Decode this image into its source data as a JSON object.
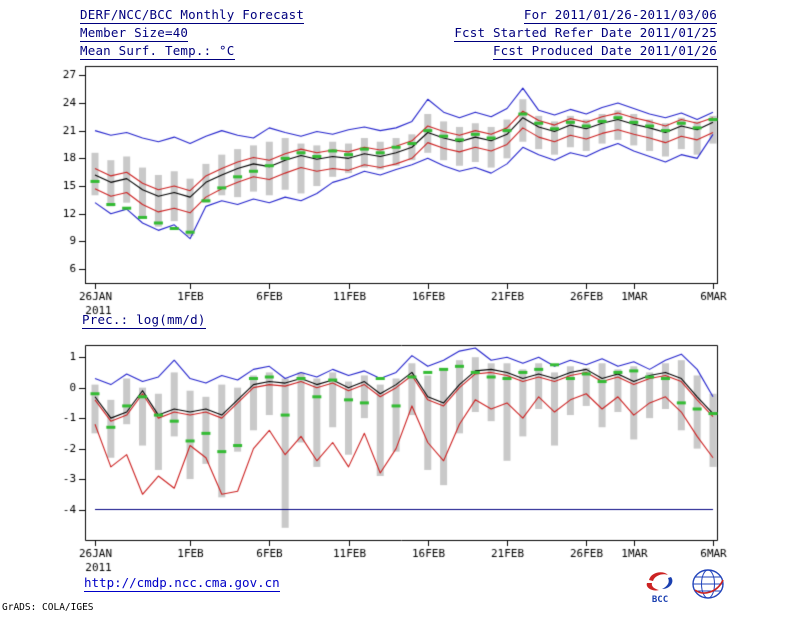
{
  "header": {
    "title_left": "DERF/NCC/BCC Monthly Forecast",
    "title_right": "For 2011/01/26-2011/03/06",
    "member_size": "Member Size=40",
    "refer_date": "Fcst Started Refer Date 2011/01/25",
    "var_label": "Mean Surf. Temp.: °C",
    "produced_date": "Fcst Produced Date 2011/01/26"
  },
  "footer": {
    "url": "http://cmdp.ncc.cma.gov.cn",
    "credit": "GrADS: COLA/IGES",
    "logos": [
      {
        "name": "bcc-logo",
        "label": "BCC"
      },
      {
        "name": "globe-logo",
        "label": ""
      }
    ]
  },
  "colors": {
    "envelope": "#2222cc",
    "quartile": "#cc2222",
    "mean": "#000000",
    "observation": "#33bb33",
    "spread_bar": "#c9c9c9",
    "floor_line": "#000080",
    "header_text": "#00007e",
    "link": "#0000c8"
  },
  "chart_data": [
    {
      "type": "line",
      "title": "Mean Surf. Temp.: °C",
      "n_days": 40,
      "x_tick_labels": [
        "26JAN",
        "1FEB",
        "6FEB",
        "11FEB",
        "16FEB",
        "21FEB",
        "26FEB",
        "1MAR",
        "6MAR"
      ],
      "x_tick_days": [
        0,
        6,
        11,
        16,
        21,
        26,
        31,
        34,
        39
      ],
      "x_sub_label": "2011",
      "ylim": [
        6,
        27
      ],
      "yticks": [
        6,
        9,
        12,
        15,
        18,
        21,
        24,
        27
      ],
      "series": [
        {
          "name": "ensemble-max",
          "color": "#2222cc",
          "values": [
            21.0,
            20.5,
            20.8,
            20.2,
            19.8,
            20.3,
            19.6,
            20.4,
            21.0,
            20.5,
            20.2,
            21.3,
            20.8,
            20.4,
            20.9,
            20.6,
            21.1,
            21.4,
            21.0,
            21.3,
            22.0,
            24.4,
            23.0,
            22.4,
            23.0,
            22.5,
            23.4,
            25.6,
            23.2,
            22.7,
            23.3,
            22.8,
            23.5,
            24.0,
            23.4,
            22.8,
            22.4,
            22.9,
            22.2,
            23.0
          ]
        },
        {
          "name": "ensemble-min",
          "color": "#2222cc",
          "values": [
            13.2,
            12.0,
            12.5,
            11.0,
            10.2,
            10.8,
            9.3,
            12.8,
            13.4,
            13.0,
            13.6,
            13.2,
            13.8,
            13.4,
            14.2,
            15.4,
            15.9,
            16.6,
            16.2,
            16.8,
            17.3,
            18.0,
            17.2,
            16.6,
            17.0,
            16.4,
            17.4,
            19.2,
            18.4,
            17.8,
            18.6,
            18.2,
            19.0,
            19.6,
            18.8,
            18.2,
            17.6,
            18.4,
            18.0,
            20.6
          ]
        },
        {
          "name": "upper-quartile",
          "color": "#cc2222",
          "values": [
            16.9,
            16.1,
            16.5,
            15.3,
            14.6,
            15.0,
            14.5,
            16.1,
            16.9,
            17.6,
            18.1,
            17.8,
            18.5,
            19.0,
            18.6,
            18.9,
            18.7,
            19.2,
            18.9,
            19.3,
            19.9,
            21.5,
            20.9,
            20.5,
            21.0,
            20.6,
            21.3,
            23.1,
            22.1,
            21.6,
            22.3,
            21.9,
            22.5,
            22.9,
            22.4,
            22.0,
            21.5,
            22.2,
            21.8,
            22.4
          ]
        },
        {
          "name": "lower-quartile",
          "color": "#cc2222",
          "values": [
            14.7,
            13.9,
            14.3,
            13.0,
            12.2,
            12.6,
            12.1,
            13.8,
            14.7,
            15.4,
            16.0,
            15.7,
            16.4,
            17.0,
            16.6,
            16.9,
            16.7,
            17.3,
            17.0,
            17.4,
            18.0,
            19.7,
            19.1,
            18.7,
            19.2,
            18.8,
            19.5,
            21.3,
            20.3,
            19.8,
            20.5,
            20.1,
            20.7,
            21.1,
            20.6,
            20.2,
            19.7,
            20.4,
            20.0,
            20.8
          ]
        },
        {
          "name": "ensemble-mean",
          "color": "#000000",
          "values": [
            16.2,
            15.4,
            15.8,
            14.6,
            13.9,
            14.3,
            13.8,
            15.4,
            16.2,
            16.9,
            17.4,
            17.1,
            17.8,
            18.3,
            17.9,
            18.2,
            18.0,
            18.5,
            18.2,
            18.6,
            19.2,
            20.8,
            20.2,
            19.8,
            20.3,
            19.9,
            20.6,
            22.4,
            21.4,
            20.9,
            21.6,
            21.2,
            21.8,
            22.2,
            21.7,
            21.3,
            20.8,
            21.5,
            21.1,
            21.9
          ]
        }
      ],
      "bars": {
        "name": "member-spread",
        "color": "#c9c9c9",
        "low": [
          14.0,
          12.8,
          13.2,
          11.6,
          10.6,
          11.2,
          9.6,
          13.2,
          14.0,
          13.8,
          14.4,
          14.0,
          14.6,
          14.2,
          15.0,
          16.0,
          16.4,
          17.0,
          16.8,
          17.2,
          17.8,
          18.6,
          17.8,
          17.2,
          17.6,
          17.0,
          18.0,
          19.8,
          19.0,
          18.4,
          19.2,
          18.8,
          19.6,
          20.0,
          19.4,
          18.8,
          18.2,
          19.0,
          18.4,
          19.6
        ],
        "high": [
          18.6,
          17.8,
          18.2,
          17.0,
          16.2,
          16.6,
          15.8,
          17.4,
          18.4,
          19.0,
          19.4,
          19.8,
          20.2,
          19.6,
          19.4,
          19.8,
          19.6,
          20.2,
          19.8,
          20.2,
          20.6,
          22.8,
          22.0,
          21.4,
          21.8,
          21.4,
          22.2,
          24.4,
          22.6,
          22.0,
          22.6,
          22.2,
          22.8,
          23.2,
          22.8,
          22.2,
          21.8,
          22.4,
          22.0,
          22.6
        ]
      },
      "markers": {
        "name": "observation-dash",
        "color": "#33bb33",
        "values": [
          15.5,
          13.0,
          12.6,
          11.6,
          11.0,
          10.4,
          10.0,
          13.4,
          14.8,
          16.0,
          16.6,
          17.2,
          18.0,
          18.6,
          18.2,
          18.8,
          18.4,
          19.0,
          18.6,
          19.2,
          19.6,
          21.0,
          20.4,
          20.0,
          20.6,
          20.2,
          21.0,
          22.8,
          21.8,
          21.2,
          21.9,
          21.5,
          22.0,
          22.4,
          21.9,
          21.5,
          21.0,
          21.8,
          21.3,
          22.2
        ]
      }
    },
    {
      "type": "line",
      "title": "Prec.: log(mm/d)",
      "n_days": 40,
      "x_tick_labels": [
        "26JAN",
        "1FEB",
        "6FEB",
        "11FEB",
        "16FEB",
        "21FEB",
        "26FEB",
        "1MAR",
        "6MAR"
      ],
      "x_tick_days": [
        0,
        6,
        11,
        16,
        21,
        26,
        31,
        34,
        39
      ],
      "x_sub_label": "2011",
      "ylim": [
        -4,
        1
      ],
      "yticks": [
        -4,
        -3,
        -2,
        -1,
        0,
        1
      ],
      "series": [
        {
          "name": "lower-bound",
          "color": "#000080",
          "values": [
            -4.0,
            -4.0,
            -4.0,
            -4.0,
            -4.0,
            -4.0,
            -4.0,
            -4.0,
            -4.0,
            -4.0,
            -4.0,
            -4.0,
            -4.0,
            -4.0,
            -4.0,
            -4.0,
            -4.0,
            -4.0,
            -4.0,
            -4.0,
            -4.0,
            -4.0,
            -4.0,
            -4.0,
            -4.0,
            -4.0,
            -4.0,
            -4.0,
            -4.0,
            -4.0,
            -4.0,
            -4.0,
            -4.0,
            -4.0,
            -4.0,
            -4.0,
            -4.0,
            -4.0,
            -4.0,
            -4.0
          ]
        },
        {
          "name": "ensemble-max",
          "color": "#2222cc",
          "values": [
            0.3,
            0.1,
            0.45,
            0.2,
            0.35,
            0.9,
            0.3,
            0.15,
            0.4,
            0.25,
            0.6,
            0.7,
            0.3,
            0.5,
            0.35,
            0.6,
            0.4,
            0.55,
            0.3,
            0.5,
            1.05,
            0.7,
            0.9,
            1.2,
            1.3,
            0.9,
            1.0,
            0.8,
            1.0,
            0.7,
            0.9,
            0.75,
            0.95,
            0.7,
            0.85,
            0.6,
            0.9,
            1.1,
            0.6,
            -0.3
          ]
        },
        {
          "name": "lower-quartile",
          "color": "#cc2222",
          "values": [
            -1.2,
            -2.6,
            -2.2,
            -3.5,
            -2.9,
            -3.3,
            -1.9,
            -2.3,
            -3.5,
            -3.4,
            -2.0,
            -1.4,
            -2.2,
            -1.6,
            -2.4,
            -1.8,
            -2.6,
            -1.5,
            -2.8,
            -2.0,
            -0.6,
            -1.8,
            -2.4,
            -1.2,
            -0.4,
            -0.7,
            -0.5,
            -1.0,
            -0.3,
            -0.8,
            -0.4,
            -0.2,
            -0.7,
            -0.3,
            -0.9,
            -0.5,
            -0.3,
            -0.8,
            -1.6,
            -2.3
          ]
        },
        {
          "name": "upper-quartile",
          "color": "#cc2222",
          "values": [
            -0.4,
            -1.1,
            -0.9,
            -0.2,
            -1.0,
            -0.8,
            -0.9,
            -0.8,
            -1.0,
            -0.5,
            0.0,
            0.1,
            0.05,
            0.2,
            0.0,
            0.15,
            -0.1,
            0.1,
            -0.3,
            0.0,
            0.4,
            -0.4,
            -0.6,
            0.0,
            0.45,
            0.5,
            0.4,
            0.2,
            0.35,
            0.2,
            0.4,
            0.5,
            0.2,
            0.35,
            0.1,
            0.3,
            0.4,
            0.2,
            -0.4,
            -0.95
          ]
        },
        {
          "name": "ensemble-mean",
          "color": "#000000",
          "values": [
            -0.3,
            -1.0,
            -0.8,
            -0.1,
            -0.9,
            -0.7,
            -0.8,
            -0.7,
            -0.9,
            -0.4,
            0.1,
            0.2,
            0.15,
            0.3,
            0.1,
            0.25,
            0.0,
            0.2,
            -0.2,
            0.1,
            0.5,
            -0.3,
            -0.5,
            0.1,
            0.55,
            0.6,
            0.5,
            0.3,
            0.45,
            0.3,
            0.5,
            0.6,
            0.3,
            0.45,
            0.2,
            0.4,
            0.5,
            0.3,
            -0.3,
            -0.85
          ]
        }
      ],
      "bars": {
        "name": "member-spread",
        "color": "#c9c9c9",
        "low": [
          -1.5,
          -2.3,
          -1.2,
          -1.9,
          -2.7,
          -1.6,
          -3.0,
          -2.5,
          -3.6,
          -2.1,
          -1.4,
          -0.9,
          -4.6,
          -1.8,
          -2.6,
          -1.3,
          -2.2,
          -1.0,
          -2.9,
          -2.1,
          -0.9,
          -2.7,
          -3.2,
          -1.5,
          -0.8,
          -1.1,
          -2.4,
          -1.6,
          -0.7,
          -1.9,
          -0.9,
          -0.6,
          -1.3,
          -0.8,
          -1.7,
          -1.0,
          -0.7,
          -1.4,
          -2.0,
          -2.6
        ],
        "high": [
          0.1,
          -0.4,
          0.3,
          0.0,
          -0.2,
          0.5,
          -0.1,
          -0.3,
          0.1,
          0.0,
          0.4,
          0.5,
          0.3,
          0.5,
          0.3,
          0.5,
          0.2,
          0.4,
          0.1,
          0.3,
          0.8,
          0.4,
          0.6,
          0.9,
          1.0,
          0.8,
          0.8,
          0.6,
          0.8,
          0.5,
          0.7,
          0.65,
          0.8,
          0.6,
          0.7,
          0.5,
          0.8,
          0.9,
          0.4,
          -0.2
        ]
      },
      "markers": {
        "name": "observation-dash",
        "color": "#33bb33",
        "values": [
          -0.2,
          -1.3,
          -0.6,
          -0.3,
          -0.9,
          -1.1,
          -1.75,
          -1.5,
          -2.1,
          -1.9,
          0.3,
          0.35,
          -0.9,
          0.3,
          -0.3,
          0.25,
          -0.4,
          -0.5,
          0.3,
          -0.6,
          0.35,
          0.5,
          0.6,
          0.7,
          0.5,
          0.35,
          0.3,
          0.5,
          0.6,
          0.75,
          0.3,
          0.45,
          0.2,
          0.5,
          0.55,
          0.35,
          0.3,
          -0.5,
          -0.7,
          -0.85
        ]
      }
    }
  ]
}
